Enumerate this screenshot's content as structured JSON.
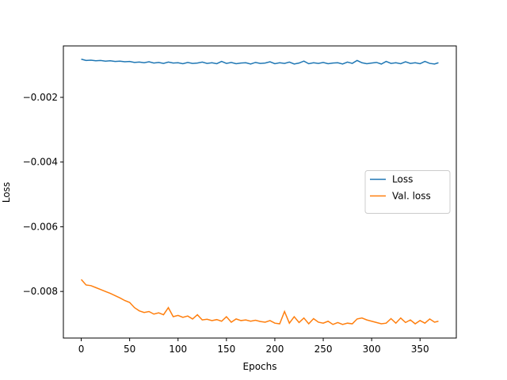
{
  "chart_data": {
    "type": "line",
    "xlabel": "Epochs",
    "ylabel": "Loss",
    "x": [
      0,
      5,
      10,
      15,
      20,
      25,
      30,
      35,
      40,
      45,
      50,
      55,
      60,
      65,
      70,
      75,
      80,
      85,
      90,
      95,
      100,
      105,
      110,
      115,
      120,
      125,
      130,
      135,
      140,
      145,
      150,
      155,
      160,
      165,
      170,
      175,
      180,
      185,
      190,
      195,
      200,
      205,
      210,
      215,
      220,
      225,
      230,
      235,
      240,
      245,
      250,
      255,
      260,
      265,
      270,
      275,
      280,
      285,
      290,
      295,
      300,
      305,
      310,
      315,
      320,
      325,
      330,
      335,
      340,
      345,
      350,
      355,
      360,
      365,
      369
    ],
    "series": [
      {
        "name": "Loss",
        "color": "#1f77b4",
        "values": [
          -0.00082,
          -0.00086,
          -0.00085,
          -0.00087,
          -0.00086,
          -0.00088,
          -0.00087,
          -0.00089,
          -0.00088,
          -0.0009,
          -0.00089,
          -0.00092,
          -0.00091,
          -0.00093,
          -0.0009,
          -0.00094,
          -0.00092,
          -0.00095,
          -0.00091,
          -0.00094,
          -0.00093,
          -0.00096,
          -0.00092,
          -0.00095,
          -0.00094,
          -0.00091,
          -0.00095,
          -0.00093,
          -0.00096,
          -0.00089,
          -0.00095,
          -0.00092,
          -0.00096,
          -0.00094,
          -0.00093,
          -0.00097,
          -0.00092,
          -0.00095,
          -0.00094,
          -0.0009,
          -0.00096,
          -0.00093,
          -0.00095,
          -0.00091,
          -0.00097,
          -0.00094,
          -0.00088,
          -0.00096,
          -0.00093,
          -0.00095,
          -0.00092,
          -0.00096,
          -0.00094,
          -0.00093,
          -0.00097,
          -0.00091,
          -0.00095,
          -0.00086,
          -0.00093,
          -0.00096,
          -0.00094,
          -0.00092,
          -0.00097,
          -0.00089,
          -0.00095,
          -0.00093,
          -0.00096,
          -0.0009,
          -0.00095,
          -0.00093,
          -0.00096,
          -0.00089,
          -0.00095,
          -0.00097,
          -0.00093
        ]
      },
      {
        "name": "Val. loss",
        "color": "#ff7f0e",
        "values": [
          -0.00763,
          -0.0078,
          -0.00782,
          -0.00788,
          -0.00794,
          -0.008,
          -0.00806,
          -0.00813,
          -0.0082,
          -0.00828,
          -0.00834,
          -0.0085,
          -0.0086,
          -0.00865,
          -0.00862,
          -0.0087,
          -0.00866,
          -0.00872,
          -0.0085,
          -0.00878,
          -0.00874,
          -0.0088,
          -0.00876,
          -0.00885,
          -0.00872,
          -0.00888,
          -0.00886,
          -0.0089,
          -0.00887,
          -0.00892,
          -0.00878,
          -0.00895,
          -0.00885,
          -0.0089,
          -0.00888,
          -0.00892,
          -0.00889,
          -0.00893,
          -0.00895,
          -0.0089,
          -0.00898,
          -0.009,
          -0.00862,
          -0.00898,
          -0.00878,
          -0.00896,
          -0.00882,
          -0.009,
          -0.00884,
          -0.00895,
          -0.00898,
          -0.00892,
          -0.00902,
          -0.00896,
          -0.00902,
          -0.00898,
          -0.009,
          -0.00885,
          -0.00882,
          -0.00888,
          -0.00892,
          -0.00896,
          -0.009,
          -0.00898,
          -0.00884,
          -0.00898,
          -0.00882,
          -0.00896,
          -0.00888,
          -0.009,
          -0.0089,
          -0.00898,
          -0.00885,
          -0.00895,
          -0.00892
        ]
      }
    ],
    "xlim": [
      -18.45,
      387.45
    ],
    "xticks": [
      0,
      50,
      100,
      150,
      200,
      250,
      300,
      350
    ],
    "ylim": [
      -0.00944,
      -0.00041
    ],
    "yticks": [
      {
        "value": -0.008,
        "label": "−0.008"
      },
      {
        "value": -0.006,
        "label": "−0.006"
      },
      {
        "value": -0.004,
        "label": "−0.004"
      },
      {
        "value": -0.002,
        "label": "−0.002"
      }
    ],
    "grid": false,
    "legend": "center right"
  }
}
